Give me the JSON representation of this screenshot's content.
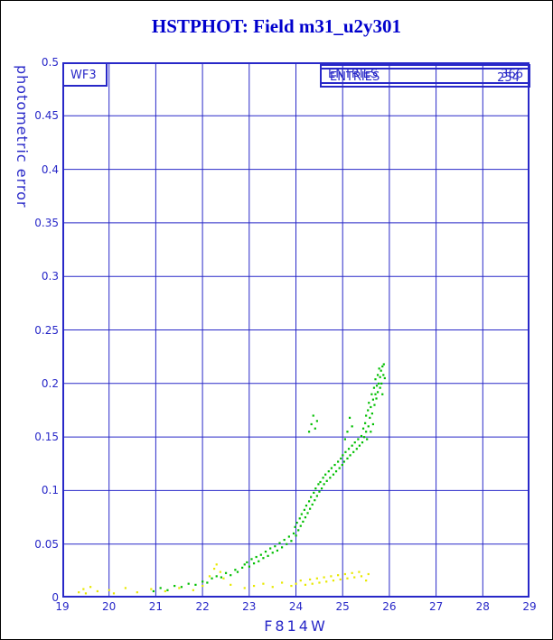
{
  "header": {
    "title": "HSTPHOT: Field m31_u2y301"
  },
  "chart_data": {
    "type": "scatter",
    "title": "HSTPHOT: Field m31_u2y301",
    "xlabel": "F814W",
    "ylabel": "photometric error",
    "xlim": [
      19,
      29
    ],
    "ylim": [
      0,
      0.5
    ],
    "grid": true,
    "annotation_box": "WF3",
    "legend_box": {
      "label": "ENTRIES",
      "values": [
        "366",
        "254"
      ]
    },
    "x_ticks": [
      19,
      20,
      21,
      22,
      23,
      24,
      25,
      26,
      27,
      28,
      29
    ],
    "x_tick_labels": [
      "19",
      "20",
      "21",
      "22",
      "23",
      "24",
      "25",
      "26",
      "27",
      "28",
      "29"
    ],
    "y_ticks": [
      0,
      0.05,
      0.1,
      0.15,
      0.2,
      0.25,
      0.3,
      0.35,
      0.4,
      0.45,
      0.5
    ],
    "y_tick_labels": [
      "0",
      "0.05",
      "0.1",
      "0.15",
      "0.2",
      "0.25",
      "0.3",
      "0.35",
      "0.4",
      "0.45",
      "0.5"
    ],
    "series": [
      {
        "name": "green-points",
        "color": "#00bf00",
        "points": [
          [
            20.95,
            0.006
          ],
          [
            21.1,
            0.009
          ],
          [
            21.25,
            0.007
          ],
          [
            21.4,
            0.011
          ],
          [
            21.55,
            0.01
          ],
          [
            21.7,
            0.013
          ],
          [
            21.85,
            0.012
          ],
          [
            22.0,
            0.015
          ],
          [
            22.1,
            0.014
          ],
          [
            22.2,
            0.018
          ],
          [
            22.3,
            0.02
          ],
          [
            22.4,
            0.019
          ],
          [
            22.5,
            0.023
          ],
          [
            22.6,
            0.021
          ],
          [
            22.7,
            0.026
          ],
          [
            22.75,
            0.024
          ],
          [
            22.85,
            0.028
          ],
          [
            22.9,
            0.031
          ],
          [
            22.95,
            0.033
          ],
          [
            23.0,
            0.029
          ],
          [
            23.05,
            0.036
          ],
          [
            23.1,
            0.032
          ],
          [
            23.15,
            0.038
          ],
          [
            23.2,
            0.034
          ],
          [
            23.25,
            0.04
          ],
          [
            23.3,
            0.037
          ],
          [
            23.35,
            0.043
          ],
          [
            23.4,
            0.039
          ],
          [
            23.45,
            0.046
          ],
          [
            23.5,
            0.042
          ],
          [
            23.55,
            0.048
          ],
          [
            23.6,
            0.044
          ],
          [
            23.65,
            0.051
          ],
          [
            23.7,
            0.047
          ],
          [
            23.75,
            0.054
          ],
          [
            23.8,
            0.05
          ],
          [
            23.85,
            0.057
          ],
          [
            23.9,
            0.053
          ],
          [
            23.95,
            0.06
          ],
          [
            23.98,
            0.066
          ],
          [
            24.0,
            0.058
          ],
          [
            24.02,
            0.07
          ],
          [
            24.05,
            0.063
          ],
          [
            24.08,
            0.074
          ],
          [
            24.1,
            0.067
          ],
          [
            24.12,
            0.078
          ],
          [
            24.15,
            0.071
          ],
          [
            24.18,
            0.082
          ],
          [
            24.2,
            0.075
          ],
          [
            24.22,
            0.086
          ],
          [
            24.25,
            0.079
          ],
          [
            24.28,
            0.09
          ],
          [
            24.3,
            0.083
          ],
          [
            24.32,
            0.094
          ],
          [
            24.35,
            0.087
          ],
          [
            24.38,
            0.098
          ],
          [
            24.4,
            0.091
          ],
          [
            24.42,
            0.102
          ],
          [
            24.45,
            0.095
          ],
          [
            24.48,
            0.106
          ],
          [
            24.5,
            0.099
          ],
          [
            24.28,
            0.155
          ],
          [
            24.33,
            0.162
          ],
          [
            24.37,
            0.17
          ],
          [
            24.41,
            0.158
          ],
          [
            24.45,
            0.165
          ],
          [
            24.52,
            0.108
          ],
          [
            24.55,
            0.102
          ],
          [
            24.58,
            0.112
          ],
          [
            24.6,
            0.106
          ],
          [
            24.63,
            0.115
          ],
          [
            24.66,
            0.109
          ],
          [
            24.7,
            0.118
          ],
          [
            24.73,
            0.112
          ],
          [
            24.76,
            0.121
          ],
          [
            24.8,
            0.115
          ],
          [
            24.83,
            0.124
          ],
          [
            24.86,
            0.118
          ],
          [
            24.9,
            0.127
          ],
          [
            24.93,
            0.121
          ],
          [
            24.96,
            0.13
          ],
          [
            24.99,
            0.124
          ],
          [
            25.0,
            0.133
          ],
          [
            25.03,
            0.127
          ],
          [
            25.06,
            0.136
          ],
          [
            25.1,
            0.13
          ],
          [
            25.13,
            0.139
          ],
          [
            25.16,
            0.133
          ],
          [
            25.2,
            0.142
          ],
          [
            25.23,
            0.136
          ],
          [
            25.26,
            0.145
          ],
          [
            25.3,
            0.139
          ],
          [
            25.33,
            0.148
          ],
          [
            25.36,
            0.142
          ],
          [
            25.4,
            0.151
          ],
          [
            25.05,
            0.148
          ],
          [
            25.1,
            0.155
          ],
          [
            25.15,
            0.168
          ],
          [
            25.2,
            0.16
          ],
          [
            25.42,
            0.145
          ],
          [
            25.44,
            0.158
          ],
          [
            25.46,
            0.15
          ],
          [
            25.48,
            0.163
          ],
          [
            25.5,
            0.155
          ],
          [
            25.5,
            0.17
          ],
          [
            25.52,
            0.148
          ],
          [
            25.54,
            0.175
          ],
          [
            25.55,
            0.16
          ],
          [
            25.56,
            0.182
          ],
          [
            25.58,
            0.168
          ],
          [
            25.6,
            0.155
          ],
          [
            25.6,
            0.178
          ],
          [
            25.62,
            0.19
          ],
          [
            25.63,
            0.172
          ],
          [
            25.65,
            0.185
          ],
          [
            25.65,
            0.162
          ],
          [
            25.67,
            0.196
          ],
          [
            25.68,
            0.18
          ],
          [
            25.7,
            0.19
          ],
          [
            25.7,
            0.204
          ],
          [
            25.72,
            0.186
          ],
          [
            25.73,
            0.198
          ],
          [
            25.75,
            0.192
          ],
          [
            25.75,
            0.208
          ],
          [
            25.77,
            0.2
          ],
          [
            25.78,
            0.214
          ],
          [
            25.8,
            0.196
          ],
          [
            25.8,
            0.206
          ],
          [
            25.82,
            0.212
          ],
          [
            25.83,
            0.2
          ],
          [
            25.85,
            0.216
          ],
          [
            25.85,
            0.19
          ],
          [
            25.87,
            0.208
          ],
          [
            25.88,
            0.218
          ],
          [
            25.9,
            0.205
          ]
        ]
      },
      {
        "name": "yellow-points",
        "color": "#e8e800",
        "points": [
          [
            19.35,
            0.005
          ],
          [
            19.45,
            0.008
          ],
          [
            19.5,
            0.004
          ],
          [
            19.6,
            0.01
          ],
          [
            19.75,
            0.006
          ],
          [
            20.0,
            0.007
          ],
          [
            20.1,
            0.004
          ],
          [
            20.35,
            0.009
          ],
          [
            20.6,
            0.005
          ],
          [
            20.9,
            0.008
          ],
          [
            21.2,
            0.006
          ],
          [
            21.5,
            0.009
          ],
          [
            21.8,
            0.007
          ],
          [
            22.0,
            0.011
          ],
          [
            22.15,
            0.02
          ],
          [
            22.25,
            0.027
          ],
          [
            22.3,
            0.031
          ],
          [
            22.38,
            0.024
          ],
          [
            22.45,
            0.018
          ],
          [
            22.6,
            0.012
          ],
          [
            22.9,
            0.009
          ],
          [
            23.1,
            0.011
          ],
          [
            23.3,
            0.013
          ],
          [
            23.5,
            0.01
          ],
          [
            23.7,
            0.014
          ],
          [
            23.9,
            0.011
          ],
          [
            24.0,
            0.013
          ],
          [
            24.1,
            0.016
          ],
          [
            24.2,
            0.012
          ],
          [
            24.3,
            0.017
          ],
          [
            24.35,
            0.013
          ],
          [
            24.45,
            0.018
          ],
          [
            24.5,
            0.014
          ],
          [
            24.6,
            0.019
          ],
          [
            24.65,
            0.015
          ],
          [
            24.75,
            0.02
          ],
          [
            24.8,
            0.016
          ],
          [
            24.9,
            0.021
          ],
          [
            24.95,
            0.017
          ],
          [
            25.05,
            0.022
          ],
          [
            25.1,
            0.018
          ],
          [
            25.2,
            0.023
          ],
          [
            25.25,
            0.019
          ],
          [
            25.35,
            0.024
          ],
          [
            25.4,
            0.02
          ],
          [
            25.5,
            0.016
          ],
          [
            25.55,
            0.022
          ]
        ]
      }
    ]
  }
}
